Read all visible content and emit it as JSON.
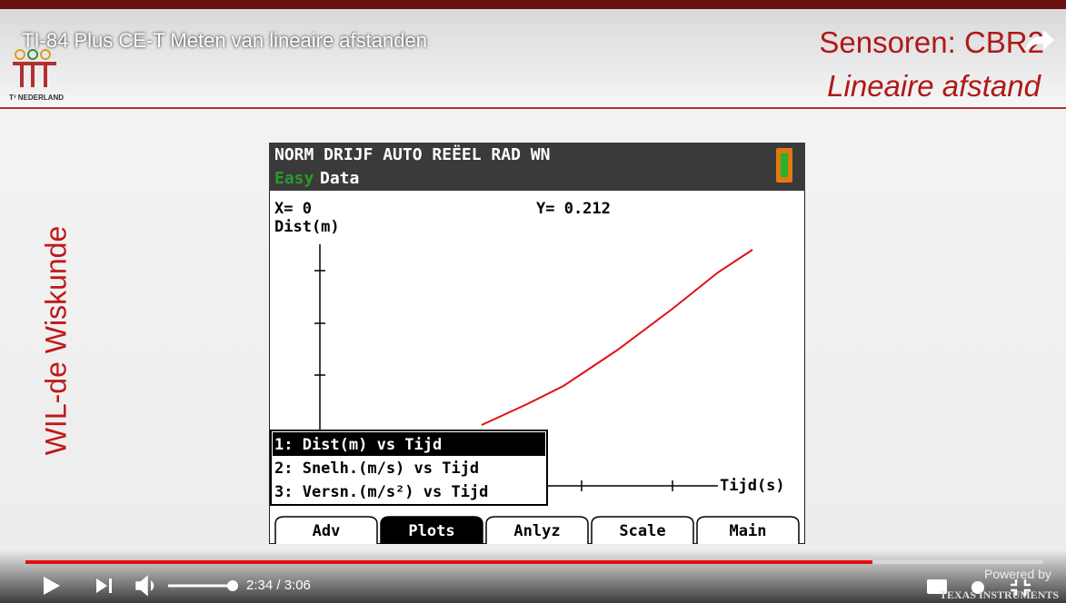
{
  "video": {
    "title": "TI-84 Plus CE-T Meten van lineaire afstanden",
    "time": "2:34 / 3:06"
  },
  "slide": {
    "logo_text": "T³ NEDERLAND",
    "heading": "Sensoren: CBR2",
    "subheading": "Lineaire afstand",
    "side_text": "WIL-de Wiskunde"
  },
  "calculator": {
    "status": "NORM DRIJF AUTO REËEL RAD WN",
    "app_prefix": "Easy",
    "app_name": "Data",
    "x_readout": "X= 0",
    "y_readout": "Y= 0.212",
    "y_axis_label": "Dist(m)",
    "x_axis_label": "Tijd(s)",
    "menu": [
      "1: Dist(m) vs Tijd",
      "2: Snelh.(m/s) vs Tijd",
      "3: Versn.(m/s²) vs Tijd"
    ],
    "softkeys": [
      "Adv",
      "Plots",
      "Anlyz",
      "Scale",
      "Main"
    ]
  },
  "branding": {
    "powered": "Powered by",
    "company": "TEXAS INSTRUMENTS"
  }
}
